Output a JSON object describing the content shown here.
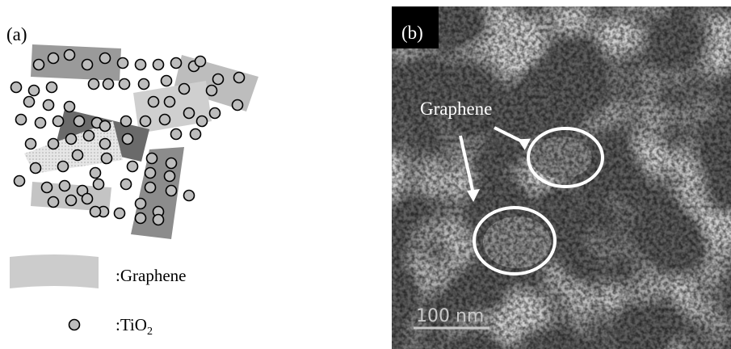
{
  "panel_a": {
    "label": "(a)",
    "legend": [
      {
        "label": ":Graphene"
      },
      {
        "label": ":TiO",
        "subscript": "2"
      }
    ]
  },
  "panel_b": {
    "label": "(b)",
    "annotation": "Graphene",
    "scale_bar": "100 nm"
  }
}
